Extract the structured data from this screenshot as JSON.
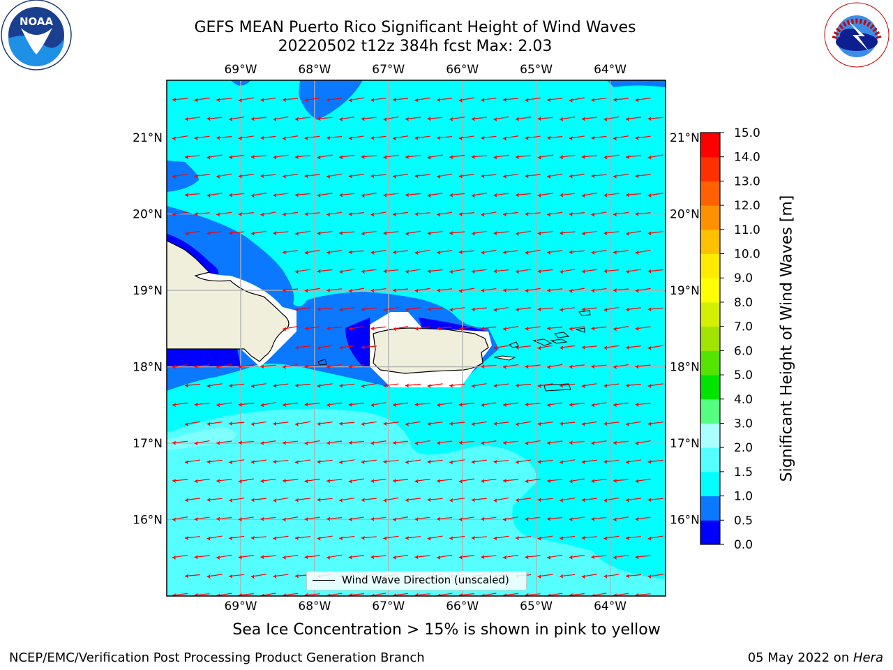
{
  "title": {
    "line1": "GEFS MEAN Puerto Rico Significant Height of Wind Waves",
    "line2": "20220502 t12z 384h fcst   Max: 2.03"
  },
  "map": {
    "lon_ticks": [
      "69°W",
      "68°W",
      "67°W",
      "66°W",
      "65°W",
      "64°W"
    ],
    "lat_ticks": [
      "21°N",
      "20°N",
      "19°N",
      "18°N",
      "17°N",
      "16°N"
    ],
    "lon_values": [
      -69,
      -68,
      -67,
      -66,
      -65,
      -64
    ],
    "lat_values": [
      21,
      20,
      19,
      18,
      17,
      16
    ],
    "extent": {
      "lon_min": -70,
      "lon_max": -63.25,
      "lat_min": 15,
      "lat_max": 21.75
    },
    "wind_wave_direction": "from east-northeast (arrows point west-southwest)",
    "legend_label": "Wind Wave Direction (unscaled)"
  },
  "colorbar": {
    "label": "Significant Height of Wind Waves [m]",
    "levels": [
      "0.0",
      "0.5",
      "1.0",
      "1.5",
      "2.0",
      "3.0",
      "4.0",
      "5.0",
      "6.0",
      "7.0",
      "8.0",
      "9.0",
      "10.0",
      "11.0",
      "12.0",
      "13.0",
      "14.0",
      "15.0"
    ],
    "colors": [
      "#0000ff",
      "#0a78ff",
      "#00ffff",
      "#55ffff",
      "#aaffff",
      "#55ff80",
      "#00e400",
      "#55e400",
      "#a0e400",
      "#d2f000",
      "#ffff00",
      "#ffea00",
      "#ffc000",
      "#ff9000",
      "#ff6000",
      "#ff3000",
      "#ff0000"
    ]
  },
  "note": "Sea Ice Concentration > 15% is shown in pink to yellow",
  "footer": {
    "left": "NCEP/EMC/Verification Post Processing Product Generation Branch",
    "right_date": "05 May 2022 on ",
    "right_machine": "Hera"
  },
  "logos": {
    "noaa_text": "NOAA",
    "nws_text": "NATIONAL WEATHER SERVICE"
  }
}
